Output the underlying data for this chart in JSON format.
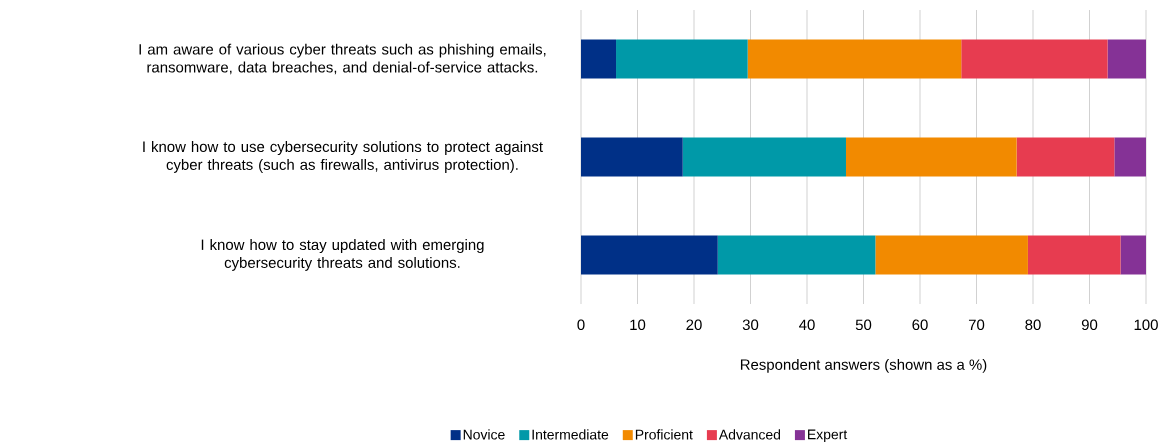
{
  "chart_data": {
    "type": "bar",
    "orientation": "horizontal",
    "stacked": true,
    "categories": [
      "I am aware of various cyber threats such as phishing emails, ransomware, data breaches, and denial-of-service attacks.",
      "I know how to use cybersecurity solutions to protect against cyber threats (such as firewalls, antivirus protection).",
      "I know how to stay updated with emerging cybersecurity threats and solutions."
    ],
    "series": [
      {
        "name": "Novice",
        "color": "#003087",
        "values": [
          6.2,
          18.0,
          24.2
        ]
      },
      {
        "name": "Intermediate",
        "color": "#0099a8",
        "values": [
          23.3,
          28.9,
          27.9
        ]
      },
      {
        "name": "Proficient",
        "color": "#f28a00",
        "values": [
          37.8,
          30.2,
          27.0
        ]
      },
      {
        "name": "Advanced",
        "color": "#e73c50",
        "values": [
          25.9,
          17.3,
          16.4
        ]
      },
      {
        "name": "Expert",
        "color": "#853296",
        "values": [
          6.8,
          5.6,
          4.5
        ]
      }
    ],
    "xlabel": "Respondent answers (shown as a %)",
    "xlim": [
      0,
      100
    ],
    "xticks": [
      0,
      10,
      20,
      30,
      40,
      50,
      60,
      70,
      80,
      90,
      100
    ],
    "grid": "x",
    "legend": "bottom"
  }
}
